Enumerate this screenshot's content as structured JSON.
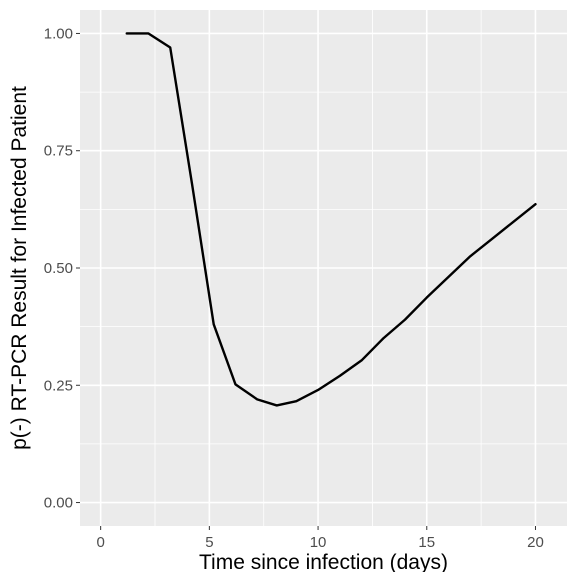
{
  "chart_data": {
    "type": "line",
    "title": "",
    "xlabel": "Time since infection (days)",
    "ylabel": "p(-) RT-PCR Result for Infected Patient",
    "xlim": [
      -0.95,
      21.45
    ],
    "ylim": [
      -0.05,
      1.05
    ],
    "x_ticks": [
      0,
      5,
      10,
      15,
      20
    ],
    "x_tick_labels": [
      "0",
      "5",
      "10",
      "15",
      "20"
    ],
    "y_ticks": [
      0,
      0.25,
      0.5,
      0.75,
      1
    ],
    "y_tick_labels": [
      "0.00",
      "0.25",
      "0.50",
      "0.75",
      "1.00"
    ],
    "grid": true,
    "legend": "none",
    "colors": {
      "panel": "#ebebeb",
      "grid": "#ffffff",
      "line": "#000000"
    },
    "series": [
      {
        "x": [
          1.2,
          2.2,
          3.2,
          4.2,
          5.2,
          6.2,
          7.2,
          8.1,
          9.0,
          10.0,
          11.0,
          12.0,
          13.0,
          14.0,
          15.0,
          16.0,
          17.0,
          18.0,
          19.0,
          20.0
        ],
        "y": [
          1.0,
          1.0,
          0.97,
          0.68,
          0.38,
          0.252,
          0.22,
          0.207,
          0.216,
          0.24,
          0.27,
          0.303,
          0.35,
          0.39,
          0.437,
          0.481,
          0.525,
          0.562,
          0.599,
          0.636
        ]
      }
    ]
  }
}
